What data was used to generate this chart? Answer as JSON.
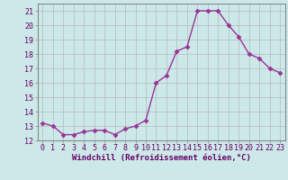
{
  "x": [
    0,
    1,
    2,
    3,
    4,
    5,
    6,
    7,
    8,
    9,
    10,
    11,
    12,
    13,
    14,
    15,
    16,
    17,
    18,
    19,
    20,
    21,
    22,
    23
  ],
  "y": [
    13.2,
    13.0,
    12.4,
    12.4,
    12.6,
    12.7,
    12.7,
    12.4,
    12.8,
    13.0,
    13.4,
    16.0,
    16.5,
    18.2,
    18.5,
    21.0,
    21.0,
    21.0,
    20.0,
    19.2,
    18.0,
    17.7,
    17.0,
    16.7
  ],
  "line_color": "#993399",
  "marker": "D",
  "markersize": 2.5,
  "linewidth": 1.0,
  "xlabel": "Windchill (Refroidissement éolien,°C)",
  "xlabel_fontsize": 6.5,
  "bg_color": "#cce8e8",
  "grid_color": "#aaaaaa",
  "tick_fontsize": 6,
  "ylim": [
    12,
    21.5
  ],
  "yticks": [
    12,
    13,
    14,
    15,
    16,
    17,
    18,
    19,
    20,
    21
  ],
  "xticks": [
    0,
    1,
    2,
    3,
    4,
    5,
    6,
    7,
    8,
    9,
    10,
    11,
    12,
    13,
    14,
    15,
    16,
    17,
    18,
    19,
    20,
    21,
    22,
    23
  ]
}
